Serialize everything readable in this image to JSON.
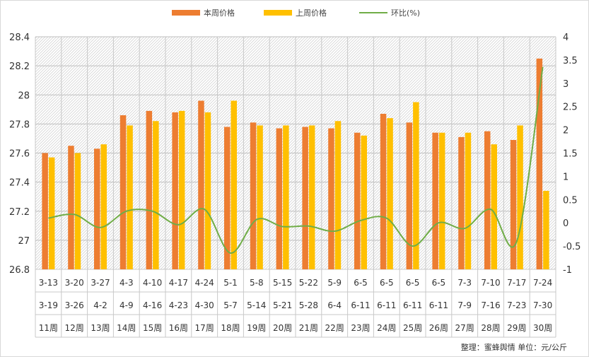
{
  "chart_data": {
    "type": "bar",
    "categories": [
      [
        "3-13",
        "3-19",
        "11周"
      ],
      [
        "3-20",
        "3-26",
        "12周"
      ],
      [
        "3-27",
        "4-2",
        "13周"
      ],
      [
        "4-3",
        "4-9",
        "14周"
      ],
      [
        "4-10",
        "4-16",
        "15周"
      ],
      [
        "4-17",
        "4-23",
        "16周"
      ],
      [
        "4-24",
        "4-30",
        "17周"
      ],
      [
        "5-1",
        "5-7",
        "18周"
      ],
      [
        "5-8",
        "5-14",
        "19周"
      ],
      [
        "5-15",
        "5-21",
        "20周"
      ],
      [
        "5-22",
        "5-28",
        "21周"
      ],
      [
        "5-9",
        "6-4",
        "22周"
      ],
      [
        "6-5",
        "6-11",
        "23周"
      ],
      [
        "6-5",
        "6-11",
        "24周"
      ],
      [
        "6-5",
        "6-11",
        "25周"
      ],
      [
        "6-5",
        "6-11",
        "26周"
      ],
      [
        "7-3",
        "7-9",
        "27周"
      ],
      [
        "7-10",
        "7-16",
        "28周"
      ],
      [
        "7-17",
        "7-23",
        "29周"
      ],
      [
        "7-24",
        "7-30",
        "30周"
      ]
    ],
    "series": [
      {
        "name": "本周价格",
        "type": "bar",
        "axis": "left",
        "color": "#ED7D31",
        "values": [
          27.6,
          27.65,
          27.63,
          27.86,
          27.89,
          27.88,
          27.96,
          27.78,
          27.81,
          27.77,
          27.78,
          27.77,
          27.74,
          27.87,
          27.81,
          27.74,
          27.71,
          27.75,
          27.69,
          28.25
        ]
      },
      {
        "name": "上周价格",
        "type": "bar",
        "axis": "left",
        "color": "#FFC000",
        "values": [
          27.57,
          27.6,
          27.66,
          27.79,
          27.82,
          27.89,
          27.88,
          27.96,
          27.79,
          27.79,
          27.79,
          27.82,
          27.72,
          27.84,
          27.95,
          27.74,
          27.74,
          27.66,
          27.79,
          27.34
        ]
      },
      {
        "name": "环比(%)",
        "type": "line",
        "axis": "right",
        "color": "#70AD47",
        "values": [
          0.1,
          0.18,
          -0.1,
          0.25,
          0.25,
          -0.04,
          0.29,
          -0.65,
          0.07,
          -0.08,
          -0.07,
          -0.18,
          0.05,
          0.1,
          -0.5,
          0.0,
          -0.12,
          0.29,
          -0.4,
          3.35
        ]
      }
    ],
    "y_left": {
      "min": 26.8,
      "max": 28.4,
      "step": 0.2,
      "ticks": [
        "26.8",
        "27",
        "27.2",
        "27.4",
        "27.6",
        "27.8",
        "28",
        "28.2",
        "28.4"
      ]
    },
    "y_right": {
      "min": -1,
      "max": 4,
      "step": 0.5,
      "ticks": [
        "-1",
        "-0.5",
        "0",
        "0.5",
        "1",
        "1.5",
        "2",
        "2.5",
        "3",
        "3.5",
        "4"
      ]
    },
    "legend_position": "top-center",
    "grid": true
  },
  "footer": {
    "text": "整理：蜜蜂舆情   单位：元/公斤"
  }
}
